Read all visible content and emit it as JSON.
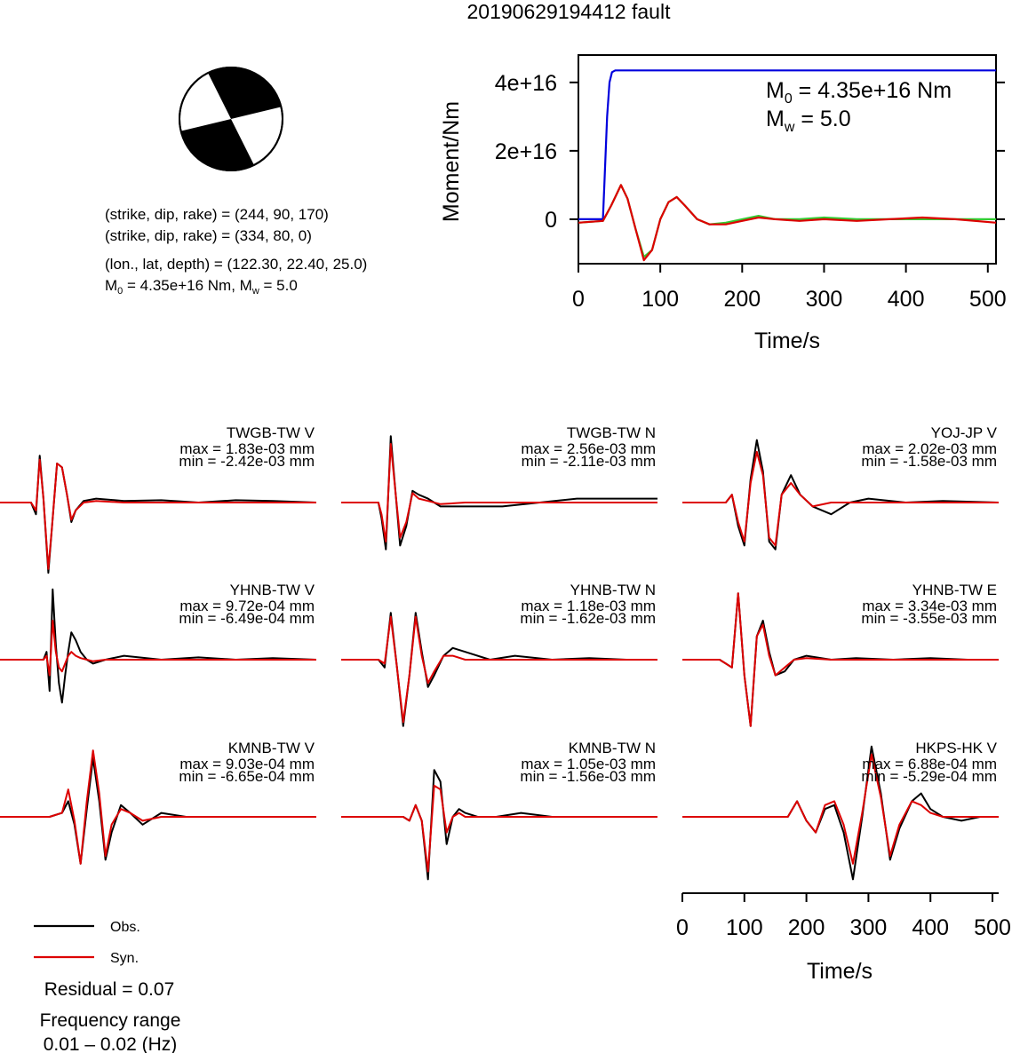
{
  "title": "20190629194412 fault",
  "colors": {
    "obs": "#000000",
    "syn": "#dd0000",
    "moment": "#0000dd",
    "rate": "#33cc33"
  },
  "mechanism": {
    "plane1": "(strike, dip, rake) = (244, 90, 170)",
    "plane2": "(strike, dip, rake) = (334, 80, 0)",
    "location": "(lon., lat, depth) = (122.30, 22.40, 25.0)",
    "moment_pre": "M",
    "moment_sub": "0",
    "moment_mid": " = 4.35e+16 Nm, M",
    "moment_sub2": "w",
    "moment_post": " = 5.0"
  },
  "chart_data": [
    {
      "type": "line",
      "name": "moment-function",
      "xlabel": "Time/s",
      "ylabel": "Moment/Nm",
      "xlim": [
        0,
        510
      ],
      "ylim": [
        -13000000000000000,
        48000000000000000
      ],
      "xticks": [
        0,
        100,
        200,
        300,
        400,
        500
      ],
      "yticks": [
        {
          "value": 40000000000000000,
          "label": "4e+16"
        },
        {
          "value": 20000000000000000,
          "label": "2e+16"
        },
        {
          "value": 0,
          "label": "0"
        }
      ],
      "annotation": {
        "m0_pre": "M",
        "m0_sub": "0",
        "m0_post": " = 4.35e+16 Nm",
        "mw_pre": "M",
        "mw_sub": "w",
        "mw_post": " = 5.0"
      },
      "series": [
        {
          "color": "moment",
          "x": [
            0,
            30,
            32,
            35,
            38,
            41,
            45,
            50,
            510
          ],
          "y": [
            0,
            0,
            1.2e+16,
            3e+16,
            4e+16,
            4.3e+16,
            4.35e+16,
            4.35e+16,
            4.35e+16
          ]
        },
        {
          "color": "rate",
          "x": [
            0,
            30,
            40,
            52,
            60,
            70,
            80,
            90,
            100,
            110,
            120,
            130,
            145,
            160,
            180,
            200,
            220,
            240,
            270,
            300,
            340,
            380,
            420,
            460,
            510
          ],
          "y": [
            -1000000000000000.0,
            -500000000000000.0,
            4000000000000000.0,
            1e+16,
            6000000000000000.0,
            -3000000000000000.0,
            -1.1e+16,
            -9000000000000000.0,
            0.0,
            5000000000000000.0,
            6500000000000000.0,
            4000000000000000.0,
            0.0,
            -1500000000000000.0,
            -1000000000000000.0,
            0.0,
            1000000000000000.0,
            0.0,
            0.0,
            500000000000000.0,
            0.0,
            0.0,
            0.0,
            0.0,
            0.0
          ]
        },
        {
          "color": "syn",
          "x": [
            0,
            30,
            40,
            52,
            60,
            70,
            80,
            90,
            100,
            110,
            120,
            130,
            145,
            160,
            180,
            200,
            220,
            240,
            270,
            300,
            340,
            380,
            420,
            460,
            510
          ],
          "y": [
            -1000000000000000.0,
            -500000000000000.0,
            4000000000000000.0,
            1e+16,
            6000000000000000.0,
            -3000000000000000.0,
            -1.2e+16,
            -9000000000000000.0,
            0.0,
            5000000000000000.0,
            6500000000000000.0,
            4000000000000000.0,
            0.0,
            -1500000000000000.0,
            -1500000000000000.0,
            -500000000000000.0,
            500000000000000.0,
            0.0,
            -500000000000000.0,
            0.0,
            -500000000000000.0,
            0.0,
            500000000000000.0,
            0.0,
            -1000000000000000.0
          ]
        }
      ]
    },
    {
      "type": "line",
      "name": "waveforms",
      "xlabel": "Time/s",
      "xlim": [
        0,
        510
      ],
      "xticks": [
        0,
        100,
        200,
        300,
        400,
        500
      ],
      "legend": {
        "obs": "Obs.",
        "syn": "Syn.",
        "placement": "bottom-left"
      },
      "residual": "Residual = 0.07",
      "freq_title": "Frequency range",
      "freq_range": "0.01 – 0.02 (Hz)",
      "stations": [
        {
          "name": "TWGB-TW V",
          "max": "max = 1.83e-03 mm",
          "min": "min = -2.42e-03 mm",
          "x": [
            0,
            50,
            58,
            64,
            70,
            78,
            84,
            92,
            100,
            108,
            115,
            122,
            135,
            155,
            200,
            260,
            320,
            380,
            440,
            510
          ],
          "obs": [
            0,
            0,
            -0.15,
            0.6,
            0.05,
            -0.9,
            -0.3,
            0.5,
            0.45,
            0.1,
            -0.25,
            -0.1,
            0.02,
            0.05,
            0.02,
            0.03,
            0.0,
            0.03,
            0.02,
            0.0
          ],
          "syn": [
            0,
            0,
            -0.1,
            0.55,
            0.05,
            -0.85,
            -0.3,
            0.5,
            0.45,
            0.1,
            -0.22,
            -0.1,
            0.0,
            0.02,
            0.0,
            0.0,
            0.0,
            0.0,
            0.0,
            0.0
          ]
        },
        {
          "name": "TWGB-TW N",
          "max": "max = 2.56e-03 mm",
          "min": "min = -2.11e-03 mm",
          "x": [
            0,
            60,
            65,
            72,
            80,
            88,
            95,
            105,
            115,
            125,
            140,
            160,
            200,
            260,
            320,
            380,
            440,
            510
          ],
          "obs": [
            0,
            0,
            -0.2,
            -0.6,
            0.85,
            0.1,
            -0.55,
            -0.3,
            0.15,
            0.1,
            0.05,
            -0.05,
            -0.05,
            -0.05,
            0.0,
            0.05,
            0.05,
            0.05
          ],
          "syn": [
            0,
            0,
            -0.15,
            -0.5,
            0.75,
            0.1,
            -0.45,
            -0.25,
            0.12,
            0.05,
            0.02,
            -0.02,
            0.0,
            0.0,
            0.0,
            0.0,
            0.0,
            0.0
          ]
        },
        {
          "name": "YOJ-JP V",
          "max": "max = 2.02e-03 mm",
          "min": "min = -1.58e-03 mm",
          "x": [
            0,
            70,
            80,
            90,
            100,
            110,
            120,
            130,
            140,
            150,
            160,
            175,
            190,
            210,
            240,
            270,
            300,
            360,
            420,
            510
          ],
          "obs": [
            0,
            0,
            0.1,
            -0.3,
            -0.55,
            0.3,
            0.8,
            0.4,
            -0.5,
            -0.6,
            0.1,
            0.35,
            0.1,
            -0.05,
            -0.15,
            0.0,
            0.05,
            0.0,
            0.02,
            0.0
          ],
          "syn": [
            0,
            0,
            0.1,
            -0.25,
            -0.5,
            0.25,
            0.65,
            0.35,
            -0.45,
            -0.55,
            0.1,
            0.25,
            0.1,
            -0.05,
            0.0,
            0.0,
            0.0,
            0.0,
            0.0,
            0.0
          ]
        },
        {
          "name": "YHNB-TW V",
          "max": "max = 9.72e-04 mm",
          "min": "min = -6.49e-04 mm",
          "x": [
            0,
            70,
            75,
            80,
            85,
            90,
            95,
            100,
            105,
            110,
            115,
            122,
            130,
            140,
            150,
            170,
            200,
            260,
            320,
            380,
            440,
            510
          ],
          "obs": [
            0,
            0,
            0.1,
            -0.4,
            0.9,
            0.2,
            -0.3,
            -0.55,
            -0.2,
            0.1,
            0.35,
            0.25,
            0.1,
            0.0,
            -0.05,
            0.0,
            0.05,
            0.0,
            0.03,
            0.0,
            0.02,
            0.0
          ],
          "syn": [
            0,
            0,
            0.05,
            -0.2,
            0.5,
            0.1,
            -0.1,
            -0.15,
            -0.05,
            0.05,
            0.1,
            0.05,
            0.02,
            0.0,
            -0.02,
            0.0,
            0.0,
            0.0,
            0.0,
            0.0,
            0.0,
            0.0
          ]
        },
        {
          "name": "YHNB-TW N",
          "max": "max = 1.18e-03 mm",
          "min": "min = -1.62e-03 mm",
          "x": [
            0,
            60,
            70,
            80,
            90,
            100,
            110,
            120,
            130,
            140,
            150,
            165,
            180,
            200,
            240,
            280,
            340,
            400,
            460,
            510
          ],
          "obs": [
            0,
            0,
            -0.1,
            0.6,
            -0.1,
            -0.85,
            -0.2,
            0.6,
            0.1,
            -0.35,
            -0.2,
            0.05,
            0.15,
            0.1,
            0.0,
            0.05,
            0.0,
            0.02,
            0.0,
            0.0
          ],
          "syn": [
            0,
            0,
            -0.05,
            0.55,
            -0.1,
            -0.8,
            -0.2,
            0.55,
            0.05,
            -0.3,
            -0.15,
            0.05,
            0.05,
            0.0,
            0.0,
            0.0,
            0.0,
            0.0,
            0.0,
            0.0
          ]
        },
        {
          "name": "YHNB-TW E",
          "max": "max = 3.34e-03 mm",
          "min": "min = -3.55e-03 mm",
          "x": [
            0,
            60,
            70,
            80,
            90,
            100,
            110,
            120,
            130,
            140,
            150,
            165,
            180,
            200,
            240,
            280,
            340,
            400,
            460,
            510
          ],
          "obs": [
            0,
            0,
            -0.05,
            -0.1,
            0.85,
            -0.2,
            -0.85,
            0.3,
            0.5,
            0.1,
            -0.2,
            -0.15,
            0.0,
            0.05,
            0.0,
            0.02,
            0.0,
            0.02,
            0.0,
            0.0
          ],
          "syn": [
            0,
            0,
            -0.05,
            -0.1,
            0.85,
            -0.2,
            -0.85,
            0.3,
            0.45,
            0.05,
            -0.2,
            -0.1,
            0.0,
            0.02,
            0.0,
            0.0,
            0.0,
            0.0,
            0.0,
            0.0
          ]
        },
        {
          "name": "KMNB-TW V",
          "max": "max = 9.03e-04 mm",
          "min": "min = -6.65e-04 mm",
          "x": [
            0,
            80,
            100,
            110,
            120,
            130,
            140,
            150,
            160,
            170,
            180,
            195,
            210,
            230,
            260,
            300,
            360,
            420,
            480,
            510
          ],
          "obs": [
            0,
            0,
            0.05,
            0.2,
            -0.1,
            -0.6,
            0.1,
            0.75,
            0.2,
            -0.55,
            -0.2,
            0.15,
            0.05,
            -0.1,
            0.05,
            0.0,
            0.0,
            0.0,
            0.0,
            0.0
          ],
          "syn": [
            0,
            0,
            0.05,
            0.35,
            -0.05,
            -0.6,
            0.2,
            0.85,
            0.3,
            -0.5,
            -0.1,
            0.1,
            0.05,
            -0.05,
            0.0,
            0.0,
            0.0,
            0.0,
            0.0,
            0.0
          ]
        },
        {
          "name": "KMNB-TW N",
          "max": "max = 1.05e-03 mm",
          "min": "min = -1.56e-03 mm",
          "x": [
            0,
            100,
            110,
            120,
            130,
            140,
            150,
            160,
            170,
            180,
            190,
            200,
            220,
            250,
            290,
            340,
            400,
            460,
            510
          ],
          "obs": [
            0,
            0,
            -0.05,
            0.15,
            -0.05,
            -0.8,
            0.6,
            0.45,
            -0.35,
            0.0,
            0.1,
            0.05,
            0.0,
            0.0,
            0.05,
            0.0,
            0.0,
            0.0,
            0.0
          ],
          "syn": [
            0,
            0,
            -0.05,
            0.15,
            -0.05,
            -0.7,
            0.4,
            0.35,
            -0.2,
            0.0,
            0.05,
            0.0,
            0.0,
            0.0,
            0.0,
            0.0,
            0.0,
            0.0,
            0.0
          ]
        },
        {
          "name": "HKPS-HK V",
          "max": "max = 6.88e-04 mm",
          "min": "min = -5.29e-04 mm",
          "x": [
            0,
            150,
            170,
            185,
            200,
            215,
            230,
            245,
            260,
            275,
            290,
            305,
            320,
            335,
            350,
            370,
            385,
            400,
            420,
            450,
            480,
            510
          ],
          "obs": [
            0,
            0,
            0.0,
            0.2,
            -0.05,
            -0.2,
            0.1,
            0.15,
            -0.2,
            -0.8,
            0.0,
            0.9,
            0.3,
            -0.55,
            -0.15,
            0.2,
            0.3,
            0.1,
            0.0,
            -0.05,
            0.0,
            0.0
          ],
          "syn": [
            0,
            0,
            0.0,
            0.2,
            -0.05,
            -0.2,
            0.15,
            0.2,
            -0.1,
            -0.6,
            0.05,
            0.8,
            0.25,
            -0.5,
            -0.1,
            0.2,
            0.15,
            0.05,
            0.0,
            0.0,
            0.0,
            0.0
          ]
        }
      ]
    }
  ]
}
